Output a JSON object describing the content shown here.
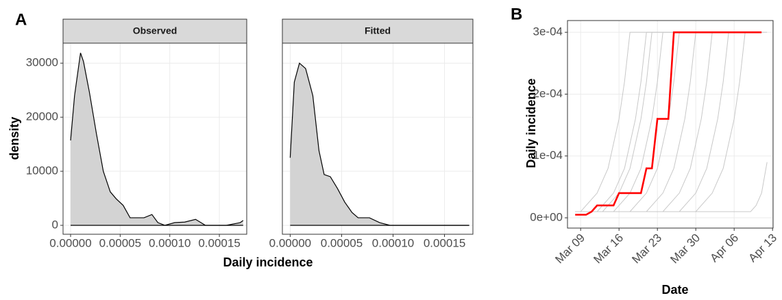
{
  "chart_data": [
    {
      "type": "density",
      "panel": "A",
      "y_label": "density",
      "x_label": "Daily incidence",
      "xlim": [
        -7.6e-06,
        0.0001776
      ],
      "xticks": [
        {
          "value": 0,
          "label": "0.00000"
        },
        {
          "value": 5e-05,
          "label": "0.00005"
        },
        {
          "value": 0.0001,
          "label": "0.00010"
        },
        {
          "value": 0.00015,
          "label": "0.00015"
        }
      ],
      "ylim": [
        -1650,
        33700
      ],
      "yticks": [
        0,
        10000,
        20000,
        30000
      ],
      "grid": true,
      "color": "#d3d3d3",
      "facets": [
        {
          "title": "Observed",
          "x": [
            0,
            4e-06,
            1e-05,
            1.3e-05,
            1.9e-05,
            2.6e-05,
            3.3e-05,
            4e-05,
            4.6e-05,
            5.3e-05,
            6e-05,
            7.4e-05,
            8.2e-05,
            8.8e-05,
            9.5e-05,
            0.000105,
            0.000115,
            0.000126,
            0.000136,
            0.000157,
            0.000171,
            0.000174
          ],
          "values": [
            15700,
            24000,
            31900,
            30300,
            24600,
            17000,
            10000,
            6200,
            4900,
            3700,
            1400,
            1400,
            2000,
            500,
            0,
            500,
            600,
            1100,
            0,
            0,
            500,
            900
          ]
        },
        {
          "title": "Fitted",
          "x": [
            0,
            4e-06,
            9e-06,
            1.5e-05,
            2.2e-05,
            2.8e-05,
            3.3e-05,
            3.9e-05,
            4.6e-05,
            5.3e-05,
            6e-05,
            6.6e-05,
            7.7e-05,
            8.7e-05,
            9.7e-05,
            0.000174
          ],
          "values": [
            12500,
            26500,
            30000,
            29000,
            24000,
            13800,
            9400,
            9000,
            6800,
            4300,
            2400,
            1400,
            1400,
            500,
            0,
            0
          ]
        }
      ]
    },
    {
      "type": "line",
      "panel": "B",
      "y_label": "Daily incidence",
      "x_label": "Date",
      "x": [
        "Mar 08",
        "Mar 09",
        "Mar 10",
        "Mar 11",
        "Mar 12",
        "Mar 13",
        "Mar 14",
        "Mar 15",
        "Mar 16",
        "Mar 17",
        "Mar 18",
        "Mar 19",
        "Mar 20",
        "Mar 21",
        "Mar 22",
        "Mar 23",
        "Mar 24",
        "Mar 25",
        "Mar 26",
        "Mar 27",
        "Mar 28",
        "Mar 29",
        "Mar 30",
        "Mar 31",
        "Apr 01",
        "Apr 02",
        "Apr 03",
        "Apr 04",
        "Apr 05",
        "Apr 06",
        "Apr 07",
        "Apr 08",
        "Apr 09",
        "Apr 10",
        "Apr 11",
        "Apr 12",
        "Apr 13"
      ],
      "xticks": [
        "Mar 09",
        "Mar 16",
        "Mar 23",
        "Mar 30",
        "Apr 06",
        "Apr 13"
      ],
      "ylim": [
        -1.66e-05,
        0.000319
      ],
      "yticks": [
        {
          "value": 0,
          "label": "0e+00"
        },
        {
          "value": 0.0001,
          "label": "1e-04"
        },
        {
          "value": 0.0002,
          "label": "2e-04"
        },
        {
          "value": 0.0003,
          "label": "3e-04"
        }
      ],
      "grid": true,
      "series": [
        {
          "color": "#c8c8c8",
          "values": [
            1e-05,
            1e-05,
            2e-05,
            3e-05,
            4e-05,
            6e-05,
            8e-05,
            0.00012,
            0.00016,
            0.00022,
            0.0003,
            0.0003,
            0.0003,
            0.0003,
            0.0003,
            0.0003,
            0.0003,
            0.0003,
            0.0003,
            0.0003,
            0.0003,
            0.0003,
            0.0003,
            0.0003,
            0.0003,
            0.0003,
            0.0003,
            0.0003,
            0.0003,
            0.0003,
            null,
            null,
            null,
            null,
            null,
            null,
            null
          ]
        },
        {
          "color": "#c8c8c8",
          "values": [
            1e-05,
            1e-05,
            1e-05,
            1e-05,
            1e-05,
            2e-05,
            3e-05,
            4e-05,
            6e-05,
            8e-05,
            0.00012,
            0.00016,
            0.00022,
            0.0003,
            0.0003,
            0.0003,
            0.0003,
            0.0003,
            0.0003,
            0.0003,
            0.0003,
            0.0003,
            0.0003,
            0.0003,
            0.0003,
            0.0003,
            0.0003,
            0.0003,
            0.0003,
            0.0003,
            0.0003,
            null,
            null,
            null,
            null,
            null,
            null
          ]
        },
        {
          "color": "#c8c8c8",
          "values": [
            1e-05,
            1e-05,
            1e-05,
            1e-05,
            1e-05,
            1e-05,
            1e-05,
            1e-05,
            2e-05,
            3e-05,
            4e-05,
            6e-05,
            8e-05,
            0.00012,
            0.00016,
            0.00022,
            0.0003,
            0.0003,
            0.0003,
            0.0003,
            0.0003,
            0.0003,
            0.0003,
            0.0003,
            0.0003,
            0.0003,
            0.0003,
            0.0003,
            0.0003,
            0.0003,
            0.0003,
            0.0003,
            null,
            null,
            null,
            null,
            null
          ]
        },
        {
          "color": "#c8c8c8",
          "values": [
            1e-05,
            1e-05,
            1e-05,
            1e-05,
            1e-05,
            1e-05,
            1e-05,
            1e-05,
            1e-05,
            1e-05,
            1e-05,
            2e-05,
            3e-05,
            4e-05,
            6e-05,
            8e-05,
            0.00012,
            0.00016,
            0.00022,
            0.0003,
            0.0003,
            0.0003,
            0.0003,
            0.0003,
            0.0003,
            0.0003,
            0.0003,
            0.0003,
            0.0003,
            0.0003,
            0.0003,
            0.0003,
            0.0003,
            null,
            null,
            null,
            null
          ]
        },
        {
          "color": "#c8c8c8",
          "values": [
            1e-05,
            1e-05,
            1e-05,
            1e-05,
            1e-05,
            1e-05,
            1e-05,
            1e-05,
            1e-05,
            1e-05,
            1e-05,
            1e-05,
            1e-05,
            1e-05,
            2e-05,
            3e-05,
            4e-05,
            6e-05,
            8e-05,
            0.00012,
            0.00016,
            0.00022,
            0.0003,
            0.0003,
            0.0003,
            0.0003,
            0.0003,
            0.0003,
            0.0003,
            0.0003,
            0.0003,
            0.0003,
            0.0003,
            null,
            null,
            null,
            null
          ]
        },
        {
          "color": "#c8c8c8",
          "values": [
            1e-05,
            1e-05,
            1e-05,
            1e-05,
            1e-05,
            1e-05,
            1e-05,
            1e-05,
            1e-05,
            1e-05,
            1e-05,
            1e-05,
            1e-05,
            1e-05,
            1e-05,
            1e-05,
            1e-05,
            2e-05,
            3e-05,
            4e-05,
            6e-05,
            8e-05,
            0.00012,
            0.00016,
            0.00022,
            0.0003,
            0.0003,
            0.0003,
            0.0003,
            0.0003,
            0.0003,
            0.0003,
            0.0003,
            0.0003,
            null,
            null,
            null
          ]
        },
        {
          "color": "#c8c8c8",
          "values": [
            1e-05,
            1e-05,
            1e-05,
            1e-05,
            1e-05,
            1e-05,
            1e-05,
            1e-05,
            1e-05,
            1e-05,
            1e-05,
            1e-05,
            1e-05,
            1e-05,
            1e-05,
            1e-05,
            1e-05,
            1e-05,
            1e-05,
            1e-05,
            2e-05,
            3e-05,
            4e-05,
            6e-05,
            8e-05,
            0.00012,
            0.00016,
            0.00022,
            0.0003,
            0.0003,
            0.0003,
            0.0003,
            0.0003,
            null,
            null,
            null,
            null
          ]
        },
        {
          "color": "#c8c8c8",
          "values": [
            1e-05,
            1e-05,
            1e-05,
            1e-05,
            1e-05,
            1e-05,
            1e-05,
            1e-05,
            1e-05,
            1e-05,
            1e-05,
            1e-05,
            1e-05,
            1e-05,
            1e-05,
            1e-05,
            1e-05,
            1e-05,
            1e-05,
            1e-05,
            1e-05,
            1e-05,
            1e-05,
            2e-05,
            3e-05,
            4e-05,
            6e-05,
            8e-05,
            0.00012,
            0.00016,
            0.00022,
            0.0003,
            0.0003,
            0.0003,
            null,
            null,
            null
          ]
        },
        {
          "color": "#c8c8c8",
          "values": [
            1e-05,
            1e-05,
            1e-05,
            1e-05,
            1e-05,
            1e-05,
            1e-05,
            1e-05,
            1e-05,
            1e-05,
            1e-05,
            1e-05,
            1e-05,
            1e-05,
            1e-05,
            1e-05,
            1e-05,
            1e-05,
            1e-05,
            1e-05,
            1e-05,
            1e-05,
            1e-05,
            1e-05,
            1e-05,
            1e-05,
            1e-05,
            1e-05,
            1e-05,
            1e-05,
            1e-05,
            1e-05,
            1e-05,
            2e-05,
            4e-05,
            9e-05,
            null
          ]
        },
        {
          "color": "#c8c8c8",
          "values": [
            1e-05,
            1e-05,
            1e-05,
            1e-05,
            1e-05,
            1e-05,
            2e-05,
            3e-05,
            4e-05,
            6e-05,
            8e-05,
            0.00012,
            0.00016,
            0.00022,
            0.0003,
            0.0003,
            0.0003,
            0.0003,
            0.0003,
            0.0003,
            0.0003,
            0.0003,
            0.0003,
            0.0003,
            0.0003,
            0.0003,
            0.0003,
            0.0003,
            0.0003,
            0.0003,
            0.0003,
            0.0003,
            0.0003,
            0.0003,
            0.0003,
            0.0003,
            null
          ]
        },
        {
          "color": "#ff0000",
          "values": [
            5e-06,
            5e-06,
            5e-06,
            1e-05,
            2e-05,
            2e-05,
            2e-05,
            2e-05,
            4e-05,
            4e-05,
            4e-05,
            4e-05,
            4e-05,
            8e-05,
            8e-05,
            0.00016,
            0.00016,
            0.00016,
            0.0003,
            0.0003,
            0.0003,
            0.0003,
            0.0003,
            0.0003,
            0.0003,
            0.0003,
            0.0003,
            0.0003,
            0.0003,
            0.0003,
            0.0003,
            0.0003,
            0.0003,
            0.0003,
            0.0003,
            null,
            null
          ]
        }
      ]
    }
  ]
}
